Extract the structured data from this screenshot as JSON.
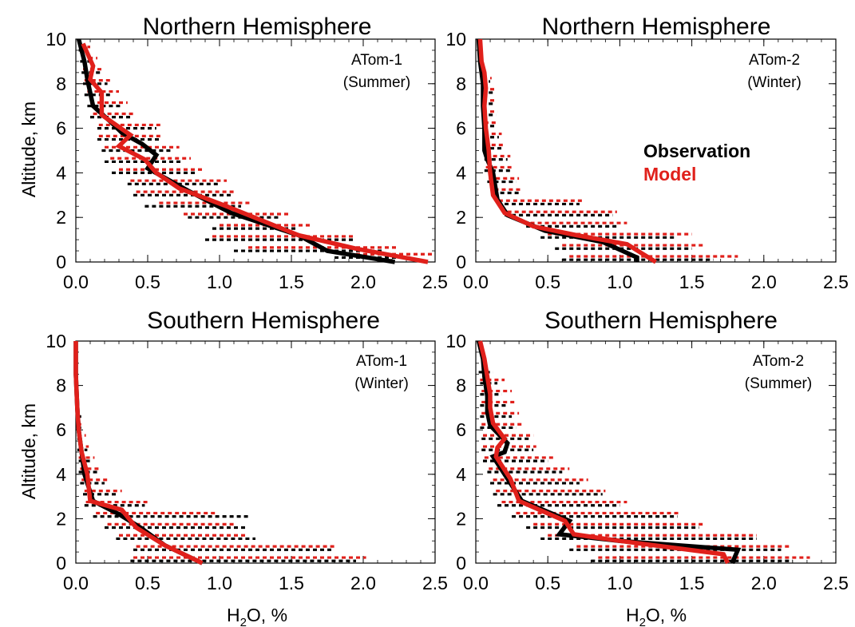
{
  "colors": {
    "observation": "#000000",
    "model": "#e0201b"
  },
  "legend": {
    "observation": "Observation",
    "model": "Model",
    "placement": "right-middle of top-right panel"
  },
  "chart_data": [
    {
      "type": "line",
      "title": "Northern Hemisphere",
      "annotation": [
        "ATom-1",
        "(Summer)"
      ],
      "ylabel": "Altitude, km",
      "xlabel": "",
      "xlim": [
        0,
        2.5
      ],
      "ylim": [
        0,
        10
      ],
      "xticks": [
        "0.0",
        "0.5",
        "1.0",
        "1.5",
        "2.0",
        "2.5"
      ],
      "yticks": [
        "0",
        "2",
        "4",
        "6",
        "8",
        "10"
      ],
      "series": [
        {
          "name": "Observation",
          "x": [
            2.22,
            1.75,
            1.55,
            1.08,
            0.78,
            0.5,
            0.56,
            0.46,
            0.32,
            0.24,
            0.12,
            0.08,
            0.06,
            0.02
          ],
          "y": [
            0,
            0.5,
            1.2,
            2.2,
            3.2,
            4.2,
            4.8,
            5.3,
            5.8,
            6.3,
            7.0,
            8.2,
            9.0,
            10.0
          ]
        },
        {
          "name": "Model",
          "x": [
            2.45,
            1.95,
            1.55,
            1.05,
            0.72,
            0.56,
            0.48,
            0.3,
            0.38,
            0.18,
            0.18,
            0.1,
            0.12,
            0.05
          ],
          "y": [
            0,
            0.6,
            1.2,
            2.5,
            3.3,
            4.0,
            4.6,
            5.2,
            5.7,
            6.6,
            7.6,
            8.2,
            8.8,
            9.8
          ]
        },
        {
          "name": "Observation range",
          "y": [
            0.2,
            0.5,
            1.0,
            1.5,
            2.0,
            2.5,
            3.0,
            3.5,
            4.0,
            4.5,
            5.0,
            5.5,
            6.0,
            6.5,
            7.0,
            7.5,
            8.0,
            8.5,
            9.0,
            9.5
          ],
          "low": [
            1.8,
            1.1,
            0.9,
            0.95,
            0.78,
            0.48,
            0.4,
            0.36,
            0.25,
            0.2,
            0.18,
            0.15,
            0.15,
            0.1,
            0.08,
            0.06,
            0.05,
            0.04,
            0.03,
            0.02
          ],
          "high": [
            2.35,
            2.15,
            1.95,
            1.55,
            1.42,
            1.15,
            1.08,
            1.0,
            0.85,
            0.75,
            0.68,
            0.58,
            0.56,
            0.38,
            0.32,
            0.26,
            0.22,
            0.18,
            0.12,
            0.08
          ]
        },
        {
          "name": "Model range",
          "y": [
            0.35,
            0.65,
            1.15,
            1.65,
            2.15,
            2.65,
            3.15,
            3.65,
            4.15,
            4.65,
            5.15,
            5.65,
            6.15,
            6.65,
            7.15,
            7.65,
            8.15,
            8.65,
            9.15,
            9.65
          ],
          "low": [
            1.9,
            1.2,
            0.95,
            1.0,
            0.75,
            0.58,
            0.42,
            0.38,
            0.3,
            0.24,
            0.2,
            0.16,
            0.16,
            0.12,
            0.1,
            0.08,
            0.06,
            0.05,
            0.04,
            0.03
          ],
          "high": [
            2.5,
            2.25,
            1.95,
            1.65,
            1.5,
            1.22,
            1.12,
            1.05,
            0.9,
            0.8,
            0.72,
            0.6,
            0.6,
            0.42,
            0.36,
            0.3,
            0.25,
            0.2,
            0.15,
            0.1
          ]
        }
      ]
    },
    {
      "type": "line",
      "title": "Northern Hemisphere",
      "annotation": [
        "ATom-2",
        "(Winter)"
      ],
      "ylabel": "",
      "xlabel": "",
      "xlim": [
        0,
        2.5
      ],
      "ylim": [
        0,
        10
      ],
      "xticks": [
        "0.0",
        "0.5",
        "1.0",
        "1.5",
        "2.0",
        "2.5"
      ],
      "yticks": [
        "0",
        "2",
        "4",
        "6",
        "8",
        "10"
      ],
      "series": [
        {
          "name": "Observation",
          "x": [
            1.12,
            1.12,
            0.88,
            0.48,
            0.22,
            0.15,
            0.12,
            0.08,
            0.06,
            0.06,
            0.05,
            0.05,
            0.03,
            0.02
          ],
          "y": [
            0,
            0.2,
            0.9,
            1.4,
            2.1,
            2.8,
            4.0,
            4.6,
            5.0,
            6.0,
            7.0,
            8.0,
            9.0,
            10.0
          ]
        },
        {
          "name": "Model",
          "x": [
            1.25,
            1.05,
            0.7,
            0.4,
            0.2,
            0.12,
            0.1,
            0.09,
            0.07,
            0.06,
            0.07,
            0.06,
            0.04,
            0.03
          ],
          "y": [
            0,
            0.8,
            1.2,
            1.6,
            2.2,
            3.0,
            4.0,
            5.0,
            6.0,
            7.0,
            7.8,
            8.5,
            9.0,
            10.0
          ]
        },
        {
          "name": "Observation range",
          "y": [
            0.1,
            0.6,
            1.1,
            1.6,
            2.1,
            2.6,
            3.1,
            3.6,
            4.1,
            4.6,
            5.1,
            5.6,
            6.1,
            6.6,
            7.1,
            7.6,
            8.1
          ],
          "low": [
            0.6,
            0.55,
            0.45,
            0.35,
            0.2,
            0.15,
            0.12,
            0.08,
            0.06,
            0.06,
            0.05,
            0.05,
            0.05,
            0.04,
            0.04,
            0.04,
            0.04
          ],
          "high": [
            1.65,
            1.5,
            1.38,
            0.98,
            0.95,
            0.72,
            0.3,
            0.28,
            0.24,
            0.22,
            0.18,
            0.16,
            0.14,
            0.14,
            0.12,
            0.12,
            0.1
          ]
        },
        {
          "name": "Model range",
          "y": [
            0.25,
            0.75,
            1.25,
            1.75,
            2.25,
            2.75,
            3.25,
            3.75,
            4.25,
            4.75,
            5.25,
            5.75,
            6.25,
            6.75,
            7.25,
            7.75,
            8.25
          ],
          "low": [
            0.65,
            0.6,
            0.5,
            0.38,
            0.22,
            0.16,
            0.13,
            0.09,
            0.07,
            0.07,
            0.06,
            0.06,
            0.06,
            0.05,
            0.05,
            0.05,
            0.05
          ],
          "high": [
            1.82,
            1.58,
            1.5,
            1.05,
            0.98,
            0.75,
            0.32,
            0.3,
            0.26,
            0.24,
            0.2,
            0.18,
            0.15,
            0.15,
            0.13,
            0.13,
            0.11
          ]
        }
      ]
    },
    {
      "type": "line",
      "title": "Southern Hemisphere",
      "annotation": [
        "ATom-1",
        "(Winter)"
      ],
      "ylabel": "Altitude, km",
      "xlabel": "H2O, %",
      "xlim": [
        0,
        2.5
      ],
      "ylim": [
        0,
        10
      ],
      "xticks": [
        "0.0",
        "0.5",
        "1.0",
        "1.5",
        "2.0",
        "2.5"
      ],
      "yticks": [
        "0",
        "2",
        "4",
        "6",
        "8",
        "10"
      ],
      "series": [
        {
          "name": "Observation",
          "x": [
            0.88,
            0.62,
            0.45,
            0.3,
            0.12,
            0.06,
            0.04,
            0.02,
            0.01,
            0.0,
            0.0
          ],
          "y": [
            0,
            0.8,
            1.6,
            2.2,
            2.8,
            4.0,
            5.0,
            6.0,
            7.0,
            8.5,
            10.0
          ]
        },
        {
          "name": "Model",
          "x": [
            0.88,
            0.62,
            0.42,
            0.32,
            0.1,
            0.08,
            0.04,
            0.02,
            0.01,
            0.0,
            0.0
          ],
          "y": [
            0,
            0.8,
            1.6,
            2.4,
            2.8,
            4.0,
            5.0,
            6.0,
            7.0,
            8.5,
            10.0
          ]
        },
        {
          "name": "Observation range",
          "y": [
            0.1,
            0.6,
            1.1,
            1.6,
            2.1,
            2.6,
            3.1,
            3.6,
            4.1,
            4.6,
            5.1,
            5.6,
            6.1,
            6.6
          ],
          "low": [
            0.38,
            0.4,
            0.28,
            0.2,
            0.12,
            0.06,
            0.05,
            0.03,
            0.02,
            0.02,
            0.01,
            0.01,
            0.01,
            0.01
          ],
          "high": [
            1.95,
            1.78,
            1.25,
            1.18,
            1.22,
            0.48,
            0.3,
            0.2,
            0.15,
            0.12,
            0.08,
            0.06,
            0.05,
            0.04
          ]
        },
        {
          "name": "Model range",
          "y": [
            0.25,
            0.75,
            1.25,
            1.75,
            2.25,
            2.75,
            3.25,
            3.75,
            4.25,
            4.75,
            5.25,
            5.75,
            6.25
          ],
          "low": [
            0.4,
            0.42,
            0.3,
            0.22,
            0.14,
            0.07,
            0.06,
            0.04,
            0.03,
            0.02,
            0.02,
            0.01,
            0.01
          ],
          "high": [
            2.02,
            1.82,
            1.2,
            1.1,
            0.98,
            0.5,
            0.32,
            0.22,
            0.16,
            0.13,
            0.09,
            0.07,
            0.06
          ]
        }
      ]
    },
    {
      "type": "line",
      "title": "Southern Hemisphere",
      "annotation": [
        "ATom-2",
        "(Summer)"
      ],
      "ylabel": "",
      "xlabel": "H2O, %",
      "xlim": [
        0,
        2.5
      ],
      "ylim": [
        0,
        10
      ],
      "xticks": [
        "0.0",
        "0.5",
        "1.0",
        "1.5",
        "2.0",
        "2.5"
      ],
      "yticks": [
        "0",
        "2",
        "4",
        "6",
        "8",
        "10"
      ],
      "series": [
        {
          "name": "Observation",
          "x": [
            1.78,
            1.82,
            1.0,
            0.58,
            0.65,
            0.32,
            0.22,
            0.12,
            0.2,
            0.22,
            0.1,
            0.08,
            0.08,
            0.06,
            0.05,
            0.02
          ],
          "y": [
            0,
            0.6,
            1.0,
            1.3,
            1.9,
            2.8,
            3.8,
            4.8,
            5.0,
            5.4,
            6.2,
            6.8,
            7.5,
            8.4,
            9.2,
            10.0
          ]
        },
        {
          "name": "Model",
          "x": [
            1.75,
            1.72,
            1.0,
            0.68,
            0.62,
            0.3,
            0.24,
            0.14,
            0.15,
            0.2,
            0.12,
            0.1,
            0.1,
            0.08,
            0.06,
            0.03
          ],
          "y": [
            0,
            0.4,
            1.0,
            1.3,
            1.9,
            2.8,
            3.8,
            4.8,
            5.2,
            5.6,
            6.3,
            7.0,
            7.6,
            8.4,
            9.2,
            10.0
          ]
        },
        {
          "name": "Observation range",
          "y": [
            0.1,
            0.6,
            1.1,
            1.6,
            2.1,
            2.6,
            3.1,
            3.6,
            4.1,
            4.6,
            5.1,
            5.6,
            6.1,
            6.6,
            7.1,
            7.6,
            8.1,
            8.6
          ],
          "low": [
            0.8,
            0.65,
            0.45,
            0.35,
            0.25,
            0.15,
            0.12,
            0.1,
            0.08,
            0.05,
            0.04,
            0.04,
            0.03,
            0.03,
            0.03,
            0.03,
            0.03,
            0.02
          ],
          "high": [
            2.2,
            2.12,
            1.95,
            1.55,
            1.4,
            1.0,
            0.88,
            0.72,
            0.6,
            0.5,
            0.4,
            0.38,
            0.28,
            0.25,
            0.22,
            0.18,
            0.15,
            0.12
          ]
        },
        {
          "name": "Model range",
          "y": [
            0.25,
            0.75,
            1.25,
            1.75,
            2.25,
            2.75,
            3.25,
            3.75,
            4.25,
            4.75,
            5.25,
            5.75,
            6.25,
            6.75,
            7.25,
            7.75,
            8.25
          ],
          "low": [
            0.85,
            0.7,
            0.5,
            0.4,
            0.28,
            0.18,
            0.14,
            0.12,
            0.09,
            0.06,
            0.05,
            0.05,
            0.04,
            0.04,
            0.04,
            0.04,
            0.03
          ],
          "high": [
            2.32,
            2.18,
            1.95,
            1.58,
            1.42,
            1.05,
            0.9,
            0.78,
            0.65,
            0.55,
            0.42,
            0.4,
            0.32,
            0.3,
            0.28,
            0.25,
            0.2
          ]
        }
      ]
    }
  ]
}
